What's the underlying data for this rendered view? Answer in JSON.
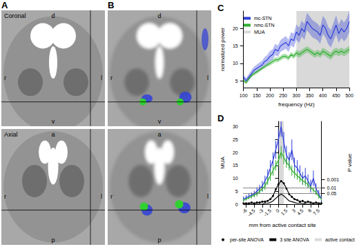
{
  "images": [
    {
      "panel": "A",
      "views": [
        {
          "title": "Coronal",
          "top": "d",
          "bottom": "v",
          "left": "r",
          "right": "l"
        },
        {
          "title": "Axial",
          "top": "a",
          "bottom": "p",
          "left": "r",
          "right": "l"
        }
      ]
    },
    {
      "panel": "B",
      "views": [
        {
          "top": "d",
          "bottom": "v",
          "left": "r",
          "right": "l"
        },
        {
          "top": "a",
          "bottom": "p",
          "left": "r",
          "right": "l"
        }
      ]
    }
  ],
  "chart_data": [
    {
      "type": "line",
      "title": "C",
      "xlabel": "frequency (Hz)",
      "ylabel": "normalized power",
      "x": [
        100,
        110,
        120,
        130,
        140,
        150,
        160,
        170,
        180,
        190,
        200,
        210,
        220,
        230,
        240,
        250,
        260,
        270,
        280,
        290,
        300,
        310,
        320,
        330,
        340,
        350,
        360,
        370,
        380,
        390,
        400,
        410,
        420,
        430,
        440,
        450,
        460,
        470,
        480,
        490,
        500
      ],
      "xlim": [
        100,
        500
      ],
      "xticks": [
        100,
        150,
        200,
        250,
        300,
        350,
        400,
        450,
        500
      ],
      "ylim": [
        3,
        25
      ],
      "yticks": [
        5,
        10,
        15,
        20
      ],
      "grid": false,
      "legend": "upper left",
      "series": [
        {
          "name": "mc-STN",
          "color": "#2f3fd8",
          "values": [
            6,
            5,
            6,
            7,
            8,
            8.5,
            9,
            9.5,
            10.5,
            11,
            12,
            12.5,
            14,
            13.5,
            15,
            15.5,
            16,
            15,
            17,
            16.5,
            19,
            18,
            20,
            19,
            22,
            21,
            20,
            19.5,
            19,
            18,
            21,
            20,
            18,
            17,
            19,
            21,
            18.5,
            20,
            19,
            20,
            22
          ],
          "sem": [
            0.8,
            0.8,
            0.9,
            1,
            1,
            1.1,
            1.2,
            1.2,
            1.3,
            1.4,
            1.5,
            1.5,
            1.6,
            1.6,
            1.7,
            1.8,
            1.8,
            1.8,
            1.9,
            2,
            2.2,
            2.2,
            2.3,
            2.3,
            2.5,
            2.5,
            2.5,
            2.4,
            2.4,
            2.4,
            2.6,
            2.6,
            2.5,
            2.5,
            2.6,
            2.8,
            2.6,
            2.7,
            2.7,
            2.8,
            3
          ]
        },
        {
          "name": "nmc-STN",
          "color": "#2fae2f",
          "values": [
            5,
            4.5,
            5.5,
            6.5,
            7,
            7.5,
            8,
            8.5,
            9,
            9.5,
            10,
            10.5,
            11,
            11,
            11.5,
            12,
            12,
            11.5,
            12.5,
            12,
            13,
            12.5,
            13,
            13.5,
            14,
            13.5,
            13,
            12.5,
            13,
            12.5,
            13.5,
            13,
            12.5,
            12,
            13,
            13.5,
            13,
            13.5,
            13,
            13.5,
            14
          ],
          "sem": [
            0.5,
            0.5,
            0.5,
            0.5,
            0.5,
            0.5,
            0.5,
            0.5,
            0.5,
            0.5,
            0.7,
            0.7,
            0.7,
            0.7,
            0.7,
            0.7,
            0.7,
            0.7,
            0.7,
            0.7,
            0.9,
            0.9,
            0.9,
            0.9,
            0.9,
            0.9,
            0.9,
            0.9,
            0.9,
            0.9,
            1,
            1,
            1,
            1,
            1,
            1,
            1,
            1,
            1,
            1,
            1
          ]
        }
      ],
      "shaded": [
        {
          "name": "MUA",
          "color": "#d9d9d9",
          "from": 300,
          "to": 500
        }
      ]
    },
    {
      "type": "line",
      "title": "D",
      "xlabel": "mm from active contact site",
      "ylabel": "MUA",
      "y2label": "P value",
      "x": [
        -6.5,
        -6,
        -5.5,
        -5,
        -4.5,
        -4,
        -3.5,
        -3,
        -2.5,
        -2,
        -1.5,
        -1,
        -0.5,
        0,
        0.5,
        1,
        1.5,
        2,
        2.5,
        3,
        3.5,
        4,
        4.5,
        5,
        5.5,
        6,
        6.5,
        7,
        7.5,
        8
      ],
      "xlim": [
        -6.5,
        8
      ],
      "xticks": [
        -6,
        -4.5,
        -3,
        -1.5,
        0,
        1.5,
        3,
        4.5,
        6,
        7.5
      ],
      "ylim": [
        0,
        32
      ],
      "yticks": [
        0,
        5,
        10,
        15,
        20,
        25,
        30
      ],
      "y2lim": [
        1,
        1e-10
      ],
      "y2ticks": [
        0.05,
        0.01,
        0.001
      ],
      "log": "y2",
      "grid": true,
      "legend": "bottom",
      "series": [
        {
          "color": "#2f3fd8",
          "values": [
            2,
            2.5,
            3,
            3.5,
            4,
            5,
            6,
            7,
            9,
            11,
            14,
            17,
            21,
            25,
            30,
            24,
            19,
            17,
            21,
            15,
            14,
            12,
            10,
            11,
            9,
            7,
            10,
            6,
            4,
            2
          ],
          "errors": [
            1,
            1,
            1,
            1,
            1.2,
            1.5,
            1.5,
            2,
            2,
            2.5,
            3,
            3,
            3.5,
            4,
            4,
            4,
            3.5,
            3,
            4,
            3,
            3,
            3,
            2.5,
            3,
            2.5,
            2.5,
            3,
            2,
            1.5,
            1
          ]
        },
        {
          "color": "#2fae2f",
          "values": [
            1.5,
            2,
            2.5,
            3,
            3.5,
            4,
            5,
            6,
            7,
            9,
            11,
            13,
            15,
            17,
            20,
            18,
            16,
            15,
            13,
            12,
            11,
            10,
            9,
            8.5,
            7.5,
            6.5,
            5.5,
            4.5,
            3,
            2
          ],
          "errors": [
            0.5,
            0.5,
            0.5,
            0.8,
            0.8,
            1,
            1,
            1.2,
            1.5,
            1.5,
            2,
            2,
            2,
            2.5,
            2.5,
            2.5,
            2,
            2,
            2,
            2,
            1.5,
            1.5,
            1.5,
            1.5,
            1.2,
            1.2,
            1,
            1,
            0.8,
            0.5
          ]
        },
        {
          "name": "per-site ANOVA",
          "color": "#000000",
          "axis": "y2",
          "marker": "circle",
          "values": [
            0.79,
            0.79,
            0.79,
            0.63,
            0.79,
            0.63,
            0.63,
            0.5,
            0.5,
            0.4,
            0.25,
            0.1,
            0.016,
            0.004,
            0.0016,
            0.003,
            0.013,
            0.063,
            0.13,
            0.25,
            0.32,
            0.5,
            0.4,
            0.63,
            0.5,
            0.63,
            0.79,
            0.63,
            0.79,
            0.79
          ]
        },
        {
          "name": "3 site ANOVA",
          "color": "#000000",
          "axis": "y2",
          "marker": "none",
          "values": [
            1,
            1,
            1,
            1,
            1,
            1,
            1,
            1,
            0.79,
            0.79,
            0.63,
            0.4,
            0.2,
            0.1,
            0.063,
            0.1,
            0.2,
            0.4,
            0.5,
            0.63,
            0.79,
            0.79,
            0.79,
            1,
            1,
            1,
            1,
            1,
            1,
            1
          ]
        }
      ],
      "shaded": [
        {
          "name": "active contact",
          "color": "#d9d9d9",
          "from": 0,
          "to": 1
        }
      ]
    }
  ]
}
